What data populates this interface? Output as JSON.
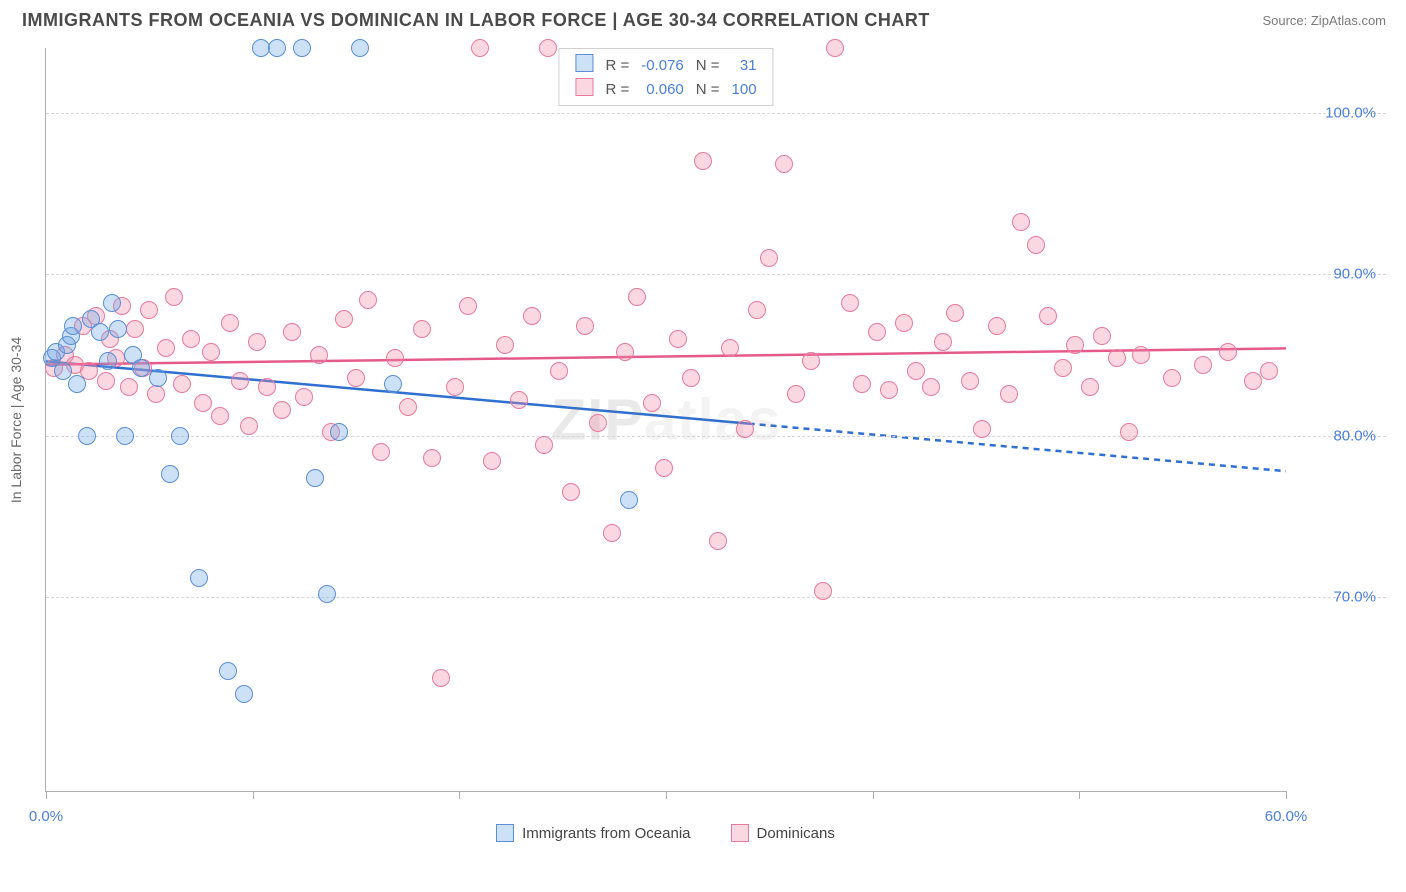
{
  "title": "IMMIGRANTS FROM OCEANIA VS DOMINICAN IN LABOR FORCE | AGE 30-34 CORRELATION CHART",
  "source": "Source: ZipAtlas.com",
  "watermark_a": "ZIP",
  "watermark_b": "atlas",
  "chart": {
    "y_axis_title": "In Labor Force | Age 30-34",
    "xlim": [
      0,
      60
    ],
    "ylim": [
      58,
      104
    ],
    "xticks": [
      0,
      10,
      20,
      30,
      40,
      50,
      60
    ],
    "xtick_labels": [
      "0.0%",
      "",
      "",
      "",
      "",
      "",
      "60.0%"
    ],
    "ygrid": [
      70,
      80,
      90,
      100
    ],
    "ytick_labels": [
      "70.0%",
      "80.0%",
      "90.0%",
      "100.0%"
    ],
    "grid_color": "#d6d6d6",
    "axis_color": "#b0b0b0",
    "tick_label_color": "#4a7fdc",
    "marker_radius": 9,
    "series": [
      {
        "key": "oceania",
        "label": "Immigrants from Oceania",
        "fill": "rgba(110,165,230,0.35)",
        "stroke": "#5a8fd6",
        "r_value": "-0.076",
        "n_value": "31",
        "trend": {
          "y_at_x0": 84.6,
          "y_at_xmax": 77.8,
          "solid_until_x": 34,
          "color": "#2e6fd0",
          "width": 2.5
        },
        "points": [
          [
            0.3,
            84.8
          ],
          [
            0.5,
            85.2
          ],
          [
            0.8,
            84.0
          ],
          [
            1.0,
            85.6
          ],
          [
            1.2,
            86.2
          ],
          [
            1.5,
            83.2
          ],
          [
            1.3,
            86.8
          ],
          [
            2.0,
            80.0
          ],
          [
            2.2,
            87.2
          ],
          [
            2.6,
            86.4
          ],
          [
            3.0,
            84.6
          ],
          [
            3.2,
            88.2
          ],
          [
            3.5,
            86.6
          ],
          [
            3.8,
            80.0
          ],
          [
            4.2,
            85.0
          ],
          [
            4.6,
            84.2
          ],
          [
            5.4,
            83.6
          ],
          [
            6.0,
            77.6
          ],
          [
            6.5,
            80.0
          ],
          [
            7.4,
            71.2
          ],
          [
            8.8,
            65.4
          ],
          [
            9.6,
            64.0
          ],
          [
            10.4,
            104.0
          ],
          [
            11.2,
            104.0
          ],
          [
            12.4,
            104.0
          ],
          [
            13.0,
            77.4
          ],
          [
            13.6,
            70.2
          ],
          [
            14.2,
            80.2
          ],
          [
            15.2,
            104.0
          ],
          [
            16.8,
            83.2
          ],
          [
            28.2,
            76.0
          ]
        ]
      },
      {
        "key": "dominican",
        "label": "Dominicans",
        "fill": "rgba(240,140,170,0.35)",
        "stroke": "#e77aa0",
        "r_value": "0.060",
        "n_value": "100",
        "trend": {
          "y_at_x0": 84.4,
          "y_at_xmax": 85.4,
          "solid_until_x": 60,
          "color": "#e55a8a",
          "width": 2.5
        },
        "points": [
          [
            0.4,
            84.2
          ],
          [
            0.9,
            85.0
          ],
          [
            1.4,
            84.4
          ],
          [
            1.8,
            86.8
          ],
          [
            2.1,
            84.0
          ],
          [
            2.4,
            87.4
          ],
          [
            2.9,
            83.4
          ],
          [
            3.1,
            86.0
          ],
          [
            3.4,
            84.8
          ],
          [
            3.7,
            88.0
          ],
          [
            4.0,
            83.0
          ],
          [
            4.3,
            86.6
          ],
          [
            4.7,
            84.2
          ],
          [
            5.0,
            87.8
          ],
          [
            5.3,
            82.6
          ],
          [
            5.8,
            85.4
          ],
          [
            6.2,
            88.6
          ],
          [
            6.6,
            83.2
          ],
          [
            7.0,
            86.0
          ],
          [
            7.6,
            82.0
          ],
          [
            8.0,
            85.2
          ],
          [
            8.4,
            81.2
          ],
          [
            8.9,
            87.0
          ],
          [
            9.4,
            83.4
          ],
          [
            9.8,
            80.6
          ],
          [
            10.2,
            85.8
          ],
          [
            10.7,
            83.0
          ],
          [
            11.4,
            81.6
          ],
          [
            11.9,
            86.4
          ],
          [
            12.5,
            82.4
          ],
          [
            13.2,
            85.0
          ],
          [
            13.8,
            80.2
          ],
          [
            14.4,
            87.2
          ],
          [
            15.0,
            83.6
          ],
          [
            15.6,
            88.4
          ],
          [
            16.2,
            79.0
          ],
          [
            16.9,
            84.8
          ],
          [
            17.5,
            81.8
          ],
          [
            18.2,
            86.6
          ],
          [
            18.7,
            78.6
          ],
          [
            19.1,
            65.0
          ],
          [
            19.8,
            83.0
          ],
          [
            20.4,
            88.0
          ],
          [
            21.0,
            104.0
          ],
          [
            21.6,
            78.4
          ],
          [
            22.2,
            85.6
          ],
          [
            22.9,
            82.2
          ],
          [
            23.5,
            87.4
          ],
          [
            24.1,
            79.4
          ],
          [
            24.3,
            104.0
          ],
          [
            24.8,
            84.0
          ],
          [
            25.4,
            76.5
          ],
          [
            26.1,
            86.8
          ],
          [
            26.7,
            80.8
          ],
          [
            27.4,
            74.0
          ],
          [
            28.0,
            85.2
          ],
          [
            28.6,
            88.6
          ],
          [
            29.3,
            82.0
          ],
          [
            29.9,
            78.0
          ],
          [
            30.6,
            86.0
          ],
          [
            31.2,
            83.6
          ],
          [
            31.8,
            97.0
          ],
          [
            32.5,
            73.5
          ],
          [
            33.1,
            85.4
          ],
          [
            33.8,
            80.4
          ],
          [
            34.4,
            87.8
          ],
          [
            35.0,
            91.0
          ],
          [
            35.7,
            96.8
          ],
          [
            36.3,
            82.6
          ],
          [
            37.0,
            84.6
          ],
          [
            37.6,
            70.4
          ],
          [
            38.2,
            104.0
          ],
          [
            38.9,
            88.2
          ],
          [
            39.5,
            83.2
          ],
          [
            40.2,
            86.4
          ],
          [
            40.8,
            82.8
          ],
          [
            41.5,
            87.0
          ],
          [
            42.1,
            84.0
          ],
          [
            42.8,
            83.0
          ],
          [
            43.4,
            85.8
          ],
          [
            44.0,
            87.6
          ],
          [
            44.7,
            83.4
          ],
          [
            45.3,
            80.4
          ],
          [
            46.0,
            86.8
          ],
          [
            46.6,
            82.6
          ],
          [
            47.2,
            93.2
          ],
          [
            47.9,
            91.8
          ],
          [
            48.5,
            87.4
          ],
          [
            49.2,
            84.2
          ],
          [
            49.8,
            85.6
          ],
          [
            50.5,
            83.0
          ],
          [
            51.1,
            86.2
          ],
          [
            51.8,
            84.8
          ],
          [
            52.4,
            80.2
          ],
          [
            53.0,
            85.0
          ],
          [
            54.5,
            83.6
          ],
          [
            56.0,
            84.4
          ],
          [
            57.2,
            85.2
          ],
          [
            58.4,
            83.4
          ],
          [
            59.2,
            84.0
          ]
        ]
      }
    ],
    "legend_top": {
      "r_label": "R =",
      "n_label": "N ="
    },
    "legend_bottom_labels": [
      "Immigrants from Oceania",
      "Dominicans"
    ]
  }
}
